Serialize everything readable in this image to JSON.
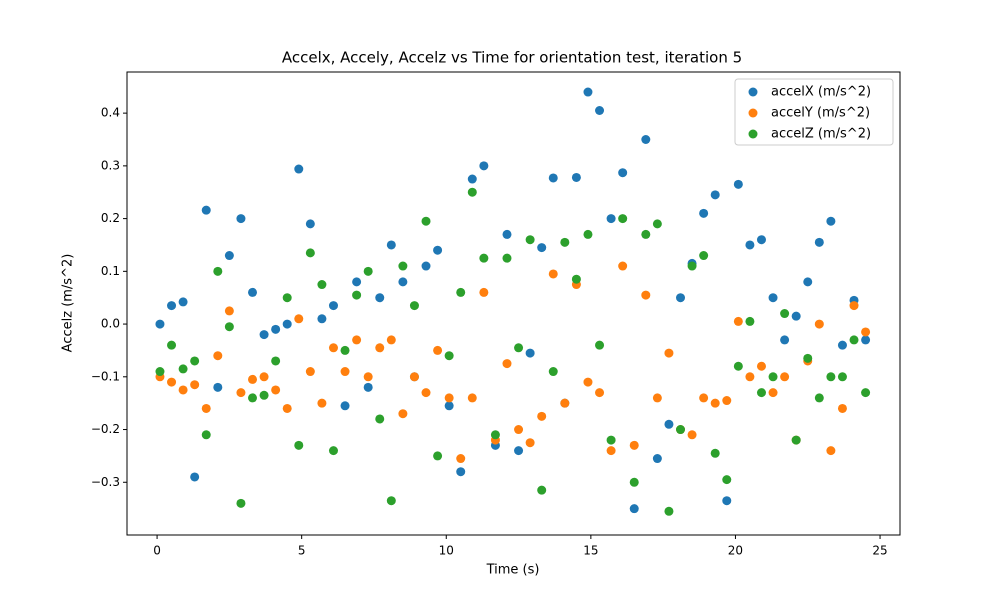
{
  "chart_data": {
    "type": "scatter",
    "title": "Accelx, Accely, Accelz vs Time for orientation test, iteration 5",
    "xlabel": "Time (s)",
    "ylabel": "Accelz (m/s^2)",
    "x": [
      0.1,
      0.5,
      0.9,
      1.3,
      1.7,
      2.1,
      2.5,
      2.9,
      3.3,
      3.7,
      4.1,
      4.5,
      4.9,
      5.3,
      5.7,
      6.1,
      6.5,
      6.9,
      7.3,
      7.7,
      8.1,
      8.5,
      8.9,
      9.3,
      9.7,
      10.1,
      10.5,
      10.9,
      11.3,
      11.7,
      12.1,
      12.5,
      12.9,
      13.3,
      13.7,
      14.1,
      14.5,
      14.9,
      15.3,
      15.7,
      16.1,
      16.5,
      16.9,
      17.3,
      17.7,
      18.1,
      18.5,
      18.9,
      19.3,
      19.7,
      20.1,
      20.5,
      20.9,
      21.3,
      21.7,
      22.1,
      22.5,
      22.9,
      23.3,
      23.7,
      24.1,
      24.5
    ],
    "series": [
      {
        "name": "accelX (m/s^2)",
        "color": "#1f77b4",
        "values": [
          0,
          0.035,
          0.042,
          -0.29,
          0.216,
          -0.12,
          0.13,
          0.2,
          0.06,
          -0.02,
          -0.01,
          0.0,
          0.294,
          0.19,
          0.01,
          0.035,
          -0.155,
          0.08,
          -0.12,
          0.05,
          0.15,
          0.08,
          -0.1,
          0.11,
          0.14,
          -0.155,
          -0.28,
          0.275,
          0.3,
          -0.23,
          0.17,
          -0.24,
          -0.055,
          0.145,
          0.277,
          -0.15,
          0.278,
          0.44,
          0.405,
          0.2,
          0.287,
          -0.35,
          0.35,
          -0.255,
          -0.19,
          0.05,
          0.115,
          0.21,
          0.245,
          -0.335,
          0.265,
          0.15,
          0.16,
          0.05,
          -0.03,
          0.015,
          0.08,
          0.155,
          0.195,
          -0.04,
          0.045,
          -0.03
        ]
      },
      {
        "name": "accelY (m/s^2)",
        "color": "#ff7f0e",
        "values": [
          -0.1,
          -0.11,
          -0.125,
          -0.115,
          -0.16,
          -0.06,
          0.025,
          -0.13,
          -0.105,
          -0.1,
          -0.125,
          -0.16,
          0.01,
          -0.09,
          -0.15,
          -0.045,
          -0.09,
          -0.03,
          -0.1,
          -0.045,
          -0.03,
          -0.17,
          -0.1,
          -0.13,
          -0.05,
          -0.14,
          -0.255,
          -0.14,
          0.06,
          -0.22,
          -0.075,
          -0.2,
          -0.225,
          -0.175,
          0.095,
          -0.15,
          0.075,
          -0.11,
          -0.13,
          -0.24,
          0.11,
          -0.23,
          0.055,
          -0.14,
          -0.055,
          -0.2,
          -0.21,
          -0.14,
          -0.15,
          -0.145,
          0.005,
          -0.1,
          -0.08,
          -0.13,
          -0.1,
          -0.22,
          -0.07,
          0.0,
          -0.24,
          -0.16,
          0.035,
          -0.015
        ]
      },
      {
        "name": "accelZ (m/s^2)",
        "color": "#2ca02c",
        "values": [
          -0.09,
          -0.04,
          -0.085,
          -0.07,
          -0.21,
          0.1,
          -0.005,
          -0.34,
          -0.14,
          -0.135,
          -0.07,
          0.05,
          -0.23,
          0.135,
          0.075,
          -0.24,
          -0.05,
          0.055,
          0.1,
          -0.18,
          -0.335,
          0.11,
          0.035,
          0.195,
          -0.25,
          -0.06,
          0.06,
          0.25,
          0.125,
          -0.21,
          0.125,
          -0.045,
          0.16,
          -0.315,
          -0.09,
          0.155,
          0.085,
          0.17,
          -0.04,
          -0.22,
          0.2,
          -0.3,
          0.17,
          0.19,
          -0.355,
          -0.2,
          0.11,
          0.13,
          -0.245,
          -0.295,
          -0.08,
          0.005,
          -0.13,
          -0.1,
          0.02,
          -0.22,
          -0.065,
          -0.14,
          -0.1,
          -0.1,
          -0.03,
          -0.13
        ]
      }
    ],
    "xlim": [
      -1.04,
      25.69
    ],
    "ylim": [
      -0.4,
      0.478
    ],
    "xticks": [
      0,
      5,
      10,
      15,
      20,
      25
    ],
    "yticks": [
      {
        "value": -0.3,
        "label": "−0.3"
      },
      {
        "value": -0.2,
        "label": "−0.2"
      },
      {
        "value": -0.1,
        "label": "−0.1"
      },
      {
        "value": 0,
        "label": "0.0"
      },
      {
        "value": 0.1,
        "label": "0.1"
      },
      {
        "value": 0.2,
        "label": "0.2"
      },
      {
        "value": 0.3,
        "label": "0.3"
      },
      {
        "value": 0.4,
        "label": "0.4"
      }
    ],
    "legend": "upper right"
  }
}
